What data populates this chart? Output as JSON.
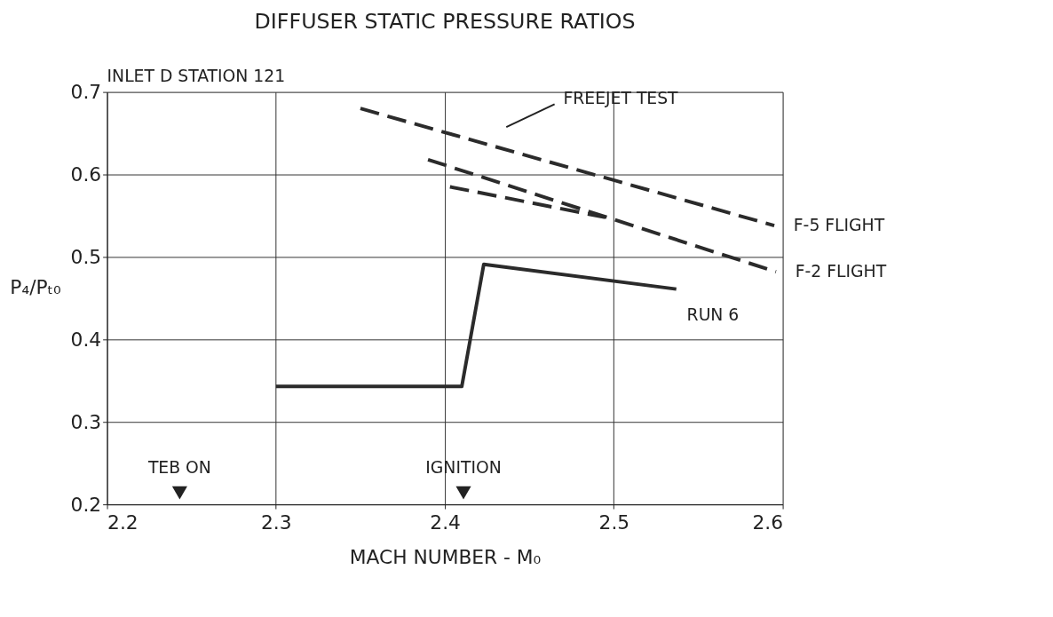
{
  "chart_data": {
    "type": "line",
    "title": "DIFFUSER STATIC PRESSURE RATIOS",
    "subtitle": "INLET D STATION 121",
    "xlabel": "MACH NUMBER - M₀",
    "ylabel": "P₄/Pₜ₀",
    "xlim": [
      2.2,
      2.6
    ],
    "xticks": [
      2.2,
      2.3,
      2.4,
      2.5,
      2.6
    ],
    "ylim": [
      0.2,
      0.7
    ],
    "yticks": [
      0.2,
      0.3,
      0.4,
      0.5,
      0.6,
      0.7
    ],
    "grid": true,
    "marker": "none",
    "series": [
      {
        "name": "F-5 FLIGHT",
        "color": "#2b2b2b",
        "line_style": "dashed",
        "x": [
          2.35,
          2.595
        ],
        "values": [
          0.68,
          0.538
        ]
      },
      {
        "name": "F-2 FLIGHT",
        "color": "#2b2b2b",
        "line_style": "dashed",
        "x": [
          2.39,
          2.596
        ],
        "values": [
          0.618,
          0.482
        ]
      },
      {
        "color": "#2b2b2b",
        "line_style": "dashed",
        "x": [
          2.403,
          2.495
        ],
        "values": [
          0.585,
          0.548
        ]
      },
      {
        "name": "RUN 6",
        "color": "#2b2b2b",
        "line_style": "solid",
        "x": [
          2.3,
          2.41,
          2.423,
          2.537
        ],
        "values": [
          0.343,
          0.343,
          0.491,
          0.461
        ]
      },
      {
        "type": "scatter",
        "marker": "triangle",
        "color": "#222222",
        "x": [
          2.243,
          2.411
        ],
        "values": [
          0.214,
          0.214
        ],
        "value_labels": [
          "TEB ON",
          "IGNITION"
        ]
      }
    ],
    "annotations": [
      "FREEJET TEST"
    ]
  }
}
